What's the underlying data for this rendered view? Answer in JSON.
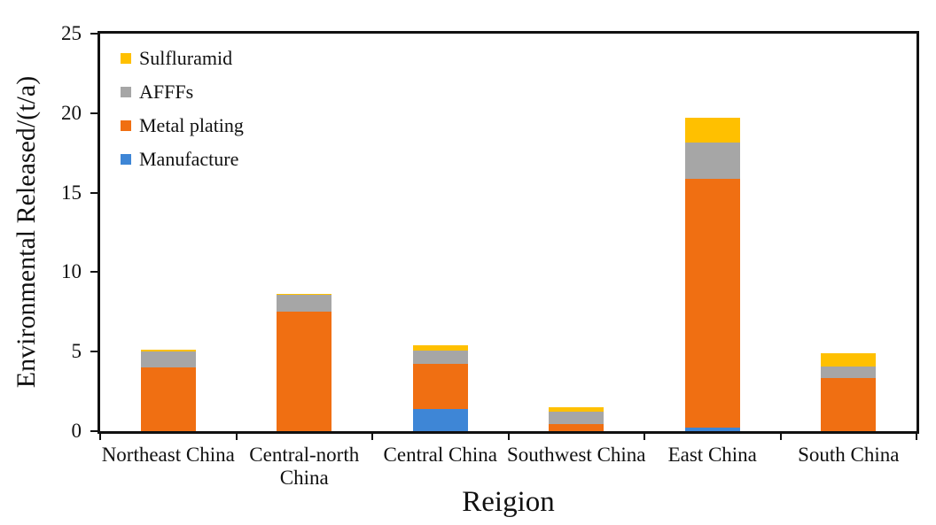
{
  "chart_data": {
    "type": "bar",
    "variant": "stacked-vertical",
    "title": "",
    "xlabel": "Reigion",
    "ylabel": "Environmental Released/(t/a)",
    "ylim": [
      0,
      25
    ],
    "yticks": [
      0,
      5,
      10,
      15,
      20,
      25
    ],
    "grid": false,
    "legend_position": "top-left-inside",
    "legend_order": [
      "Sulfluramid",
      "AFFFs",
      "Metal plating",
      "Manufacture"
    ],
    "categories": [
      "Northeast China",
      "Central-north China",
      "Central China",
      "Southwest China",
      "East China",
      "South China"
    ],
    "series": [
      {
        "name": "Manufacture",
        "color": "#3E86D6",
        "values": [
          0,
          0,
          1.4,
          0,
          0.25,
          0
        ]
      },
      {
        "name": "Metal plating",
        "color": "#F06F12",
        "values": [
          4.0,
          7.5,
          2.85,
          0.45,
          15.6,
          3.35
        ]
      },
      {
        "name": "AFFFs",
        "color": "#A6A6A6",
        "values": [
          1.0,
          1.05,
          0.8,
          0.78,
          2.3,
          0.7
        ]
      },
      {
        "name": "Sulfluramid",
        "color": "#FFC000",
        "values": [
          0.15,
          0.1,
          0.35,
          0.25,
          1.55,
          0.85
        ]
      }
    ],
    "totals": [
      5.15,
      8.65,
      5.4,
      1.48,
      19.7,
      4.9
    ],
    "axis_color": "#111111",
    "background_color": "#ffffff"
  }
}
